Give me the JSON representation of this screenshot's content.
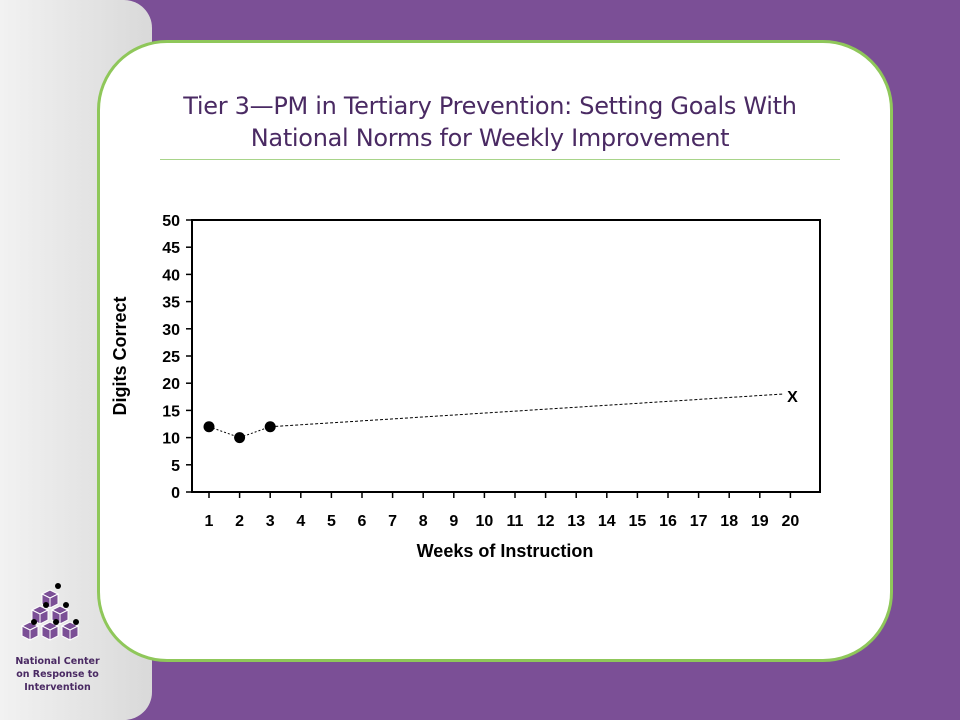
{
  "slide": {
    "title_line1": "Tier 3—PM in Tertiary Prevention: Setting Goals With",
    "title_line2": "National Norms for Weekly Improvement"
  },
  "sidebar": {
    "org_line1": "National Center",
    "org_line2": "on Response to",
    "org_line3": "Intervention",
    "logo_icon": "stacked-cubes-logo-icon"
  },
  "colors": {
    "background": "#7b4f96",
    "card_border": "#8fc75a",
    "title": "#4a2a63"
  },
  "chart_data": {
    "type": "scatter",
    "xlabel": "Weeks of Instruction",
    "ylabel": "Digits Correct",
    "x_categories": [
      "1",
      "2",
      "3",
      "4",
      "5",
      "6",
      "7",
      "8",
      "9",
      "10",
      "11",
      "12",
      "13",
      "14",
      "15",
      "16",
      "17",
      "18",
      "19",
      "20"
    ],
    "y_ticks": [
      "0",
      "5",
      "10",
      "15",
      "20",
      "25",
      "30",
      "35",
      "40",
      "45",
      "50"
    ],
    "ylim": [
      0,
      50
    ],
    "xlim": [
      1,
      20
    ],
    "grid": false,
    "series": [
      {
        "points": [
          {
            "x": 1,
            "y": 12
          },
          {
            "x": 2,
            "y": 10
          },
          {
            "x": 3,
            "y": 12
          }
        ],
        "marker": "filled-circle",
        "connector": "dotted"
      }
    ],
    "goal_line": {
      "from": {
        "x": 3,
        "y": 12
      },
      "to": {
        "x": 20,
        "y": 18
      },
      "style": "dashed"
    },
    "goal_marker": {
      "x": 20,
      "y": 18,
      "label": "X"
    }
  }
}
